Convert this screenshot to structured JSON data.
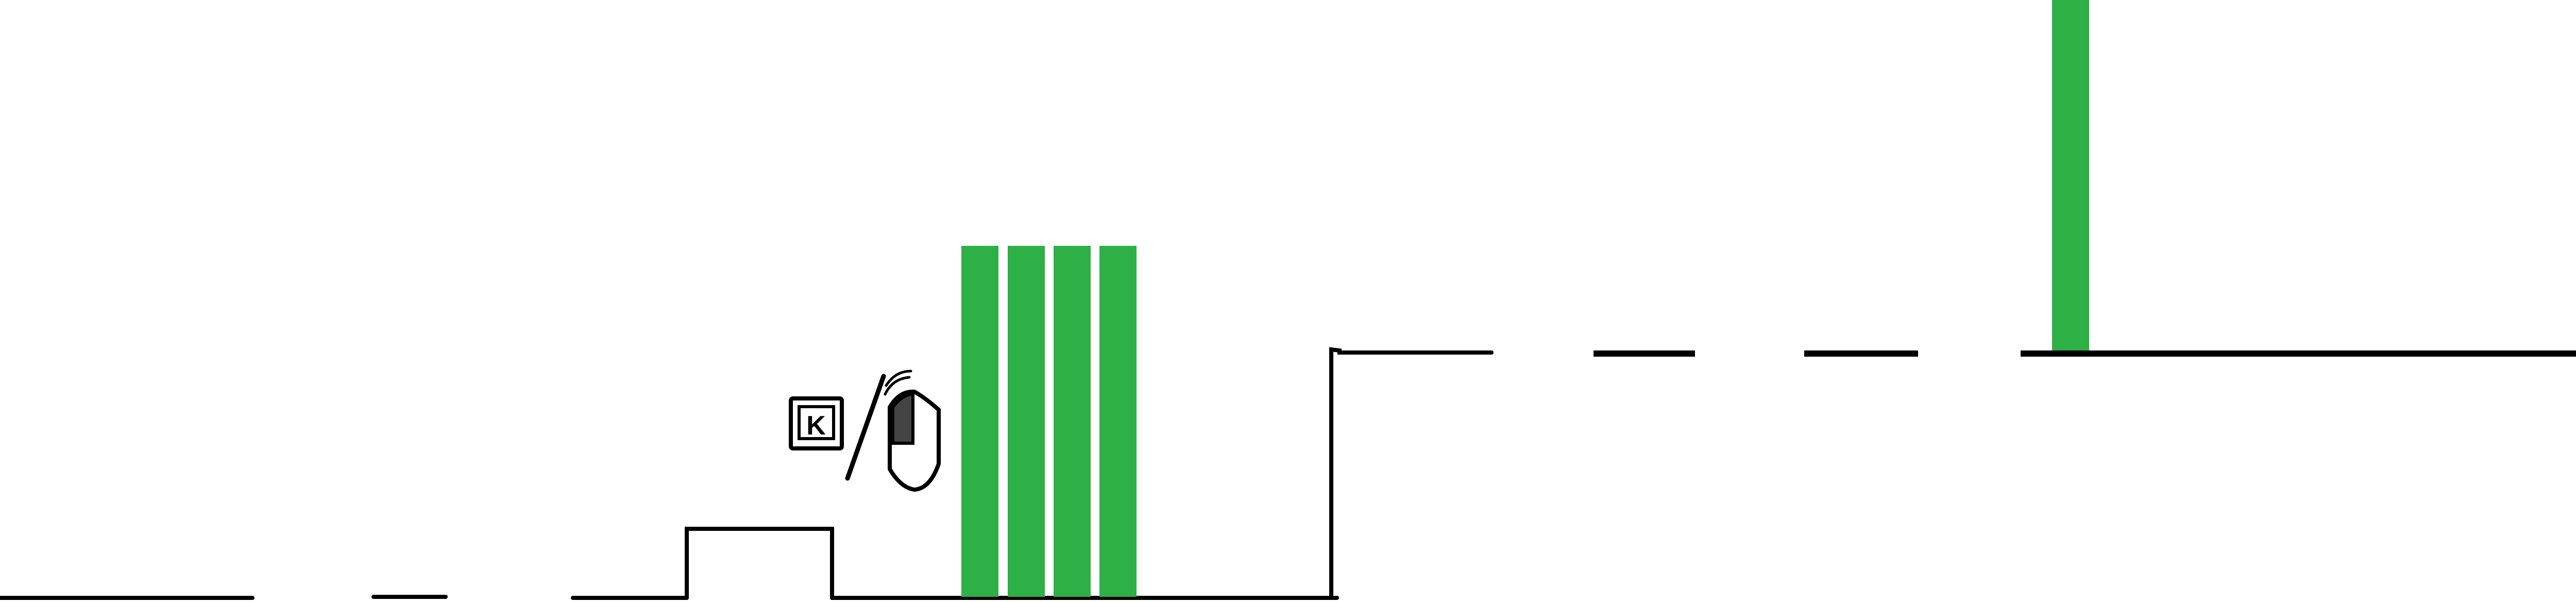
{
  "scene": {
    "type": "side-scrolling platformer level",
    "background_color": "#ffffff",
    "ground_color": "#000000",
    "pillar_color": "#2db046",
    "icon_color": "#000000",
    "icon_accent_color": "#444444"
  },
  "hud": {
    "icons": [
      {
        "name": "keyboard-key-k-icon",
        "text": "K"
      },
      {
        "name": "mouse-click-icon",
        "text": ""
      }
    ]
  }
}
